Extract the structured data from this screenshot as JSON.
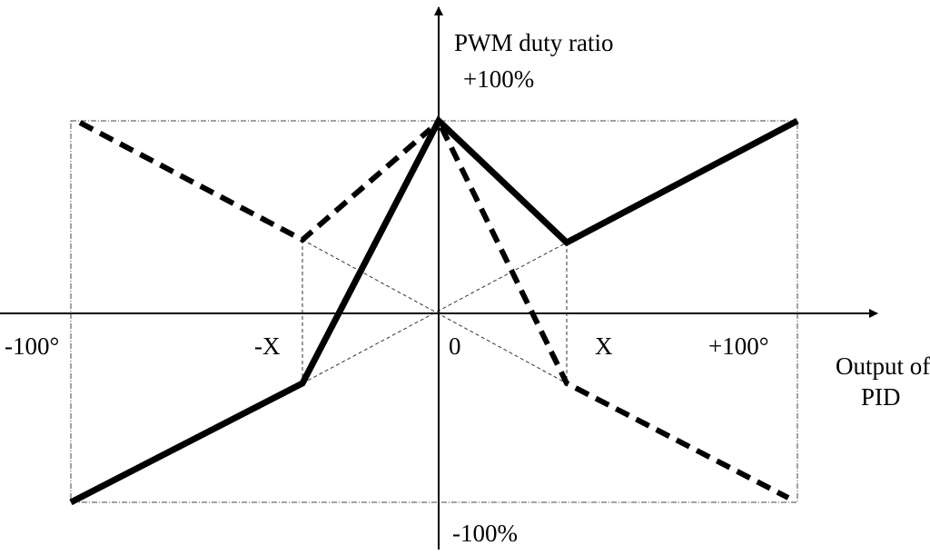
{
  "y_axis": {
    "title": "PWM duty ratio",
    "top_label": "+100%",
    "bottom_label": "-100%"
  },
  "x_axis": {
    "labels": [
      "-100°",
      "-X",
      "0",
      "X",
      "+100°"
    ],
    "title": [
      "Output of",
      "PID"
    ]
  }
}
